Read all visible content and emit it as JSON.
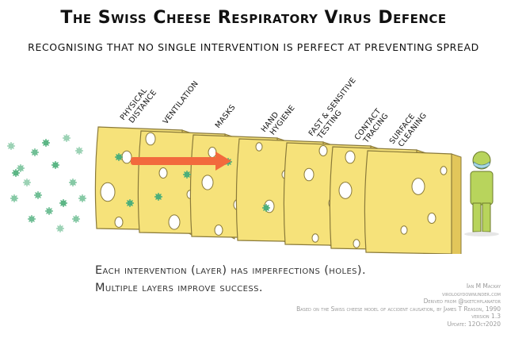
{
  "title": "The Swiss Cheese Respiratory Virus Defence",
  "subtitle": "RECOGNISING THAT NO SINGLE INTERVENTION IS PERFECT AT PREVENTING SPREAD",
  "layers": [
    {
      "line1": "PHYSICAL",
      "line2": "DISTANCE"
    },
    {
      "line1": "VENTILATION",
      "line2": ""
    },
    {
      "line1": "MASKS",
      "line2": ""
    },
    {
      "line1": "HAND",
      "line2": "HYGIENE"
    },
    {
      "line1": "FAST & SENSITIVE",
      "line2": "TESTING"
    },
    {
      "line1": "CONTACT",
      "line2": "TRACING"
    },
    {
      "line1": "SURFACE",
      "line2": "CLEANING"
    }
  ],
  "caption": {
    "line1": "Each intervention (layer) has imperfections (holes).",
    "line2": "Multiple layers improve success."
  },
  "credits": {
    "author": "Ian M Mackay",
    "site": "virologydownunder.com",
    "derived": "Derived from @sketchplanator",
    "based_on": "Based on the Swiss cheese model of accident causation, by James T Reason, 1990",
    "version": "version 1.3",
    "update": "Update: 12Oct2020"
  },
  "colors": {
    "cheese": "#f6e27a",
    "cheese_edge": "#e2c65a",
    "virus": "#4caf7a",
    "arrow": "#f26a3d",
    "person": "#b8d45c",
    "mask": "#a8d8e8"
  },
  "icons": [
    "virus-icon",
    "person-icon",
    "arrow-icon"
  ]
}
